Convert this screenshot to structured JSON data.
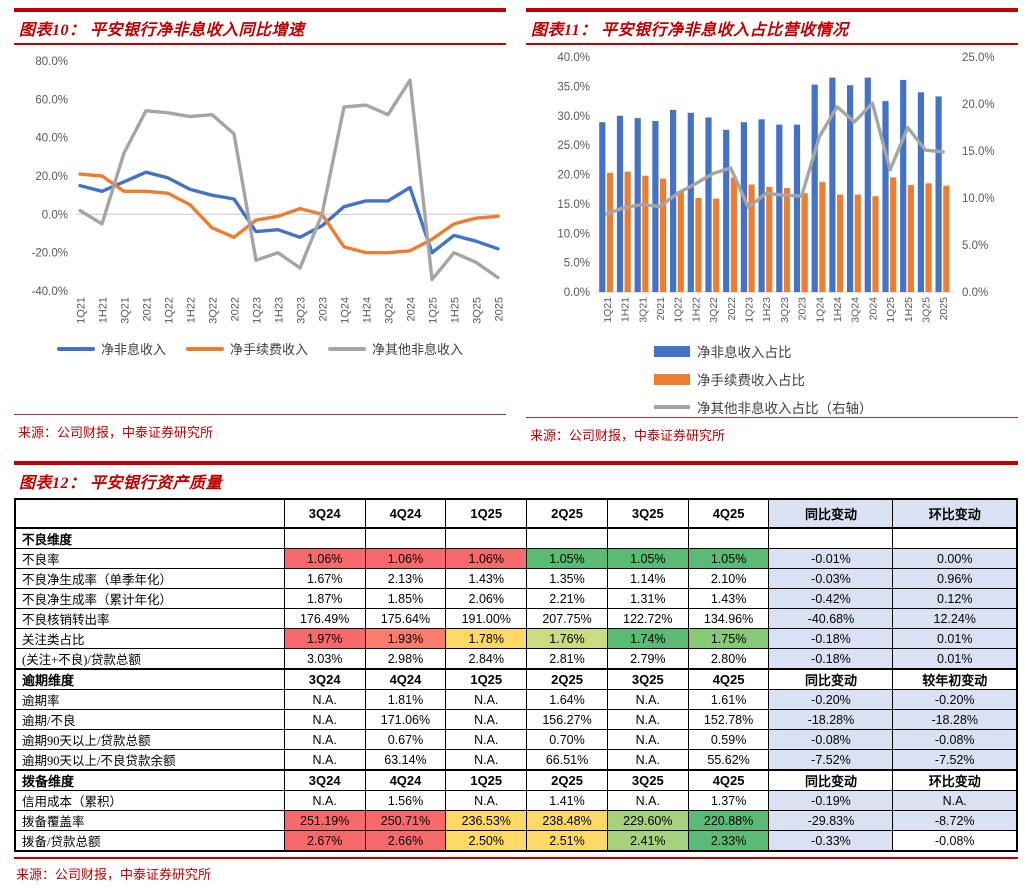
{
  "chart_data": [
    {
      "id": "fig10",
      "type": "line",
      "title": "图表10： 平安银行净非息收入同比增速",
      "source": "来源：公司财报，中泰证券研究所",
      "categories": [
        "1Q21",
        "1H21",
        "3Q21",
        "2021",
        "1Q22",
        "1H22",
        "3Q22",
        "2022",
        "1Q23",
        "1H23",
        "3Q23",
        "2023",
        "1Q24",
        "1H24",
        "3Q24",
        "2024",
        "1Q25",
        "1H25",
        "3Q25",
        "2025"
      ],
      "ylim": [
        -40,
        80
      ],
      "ytick_step": 20,
      "grid": "zero-line-only",
      "legend_position": "bottom",
      "series": [
        {
          "name": "净非息收入",
          "color": "#4472C4",
          "values": [
            15,
            12,
            17,
            22,
            19,
            13,
            10,
            8,
            -9,
            -8,
            -12,
            -6,
            4,
            7,
            7,
            14,
            -20,
            -11,
            -14,
            -18
          ]
        },
        {
          "name": "净手续费收入",
          "color": "#ED7D31",
          "values": [
            21,
            20,
            12,
            12,
            11,
            5,
            -7,
            -12,
            -3,
            -1,
            3,
            0,
            -17,
            -20,
            -20,
            -19,
            -13,
            -5,
            -2,
            -1
          ]
        },
        {
          "name": "净其他非息收入",
          "color": "#A5A5A5",
          "values": [
            2,
            -5,
            32,
            54,
            53,
            51,
            52,
            42,
            -24,
            -20,
            -28,
            0,
            56,
            57,
            52,
            70,
            -34,
            -20,
            -25,
            -33
          ]
        }
      ]
    },
    {
      "id": "fig11",
      "type": "bar+line",
      "title": "图表11： 平安银行净非息收入占比营收情况",
      "source": "来源：公司财报，中泰证券研究所",
      "categories": [
        "1Q21",
        "1H21",
        "3Q21",
        "2021",
        "1Q22",
        "1H22",
        "3Q22",
        "2022",
        "1Q23",
        "1H23",
        "3Q23",
        "2023",
        "1Q24",
        "1H24",
        "3Q24",
        "2024",
        "1Q25",
        "1H25",
        "3Q25",
        "2025"
      ],
      "left_ylim": [
        0,
        40
      ],
      "right_ylim": [
        0,
        25
      ],
      "ytick_step": 5,
      "grid": "baseline-only",
      "legend_position": "bottom-left-vertical",
      "series": [
        {
          "name": "净非息收入占比",
          "kind": "bar",
          "axis": "left",
          "color": "#4472C4",
          "values": [
            28.9,
            30.0,
            29.6,
            29.1,
            31.0,
            30.5,
            29.7,
            27.6,
            28.9,
            29.4,
            28.5,
            28.5,
            35.3,
            36.5,
            35.2,
            36.5,
            32.5,
            36.1,
            34.0,
            33.3
          ]
        },
        {
          "name": "净手续费收入占比",
          "kind": "bar",
          "axis": "left",
          "color": "#ED7D31",
          "values": [
            20.3,
            20.5,
            19.8,
            19.3,
            17.2,
            16.0,
            15.9,
            19.5,
            18.3,
            17.9,
            17.7,
            16.8,
            18.7,
            16.6,
            16.6,
            16.3,
            19.5,
            18.2,
            18.5,
            18.1
          ]
        },
        {
          "name": "净其他非息收入占比（右轴）",
          "kind": "line",
          "axis": "right",
          "color": "#A5A5A5",
          "values": [
            8.3,
            9.0,
            9.3,
            9.1,
            10.5,
            11.5,
            12.6,
            13.2,
            9.0,
            10.5,
            10.3,
            10.2,
            16.5,
            19.7,
            18.1,
            20.1,
            13.0,
            17.5,
            15.1,
            14.9
          ]
        }
      ]
    }
  ],
  "table": {
    "title": "图表12： 平安银行资产质量",
    "source": "来源：公司财报，中泰证券研究所",
    "palette": {
      "red": "#F8696B",
      "red2": "#F87D6C",
      "yellow": "#FFD966",
      "yg": "#C9DC80",
      "lg": "#A6D17E",
      "green": "#5ABB74",
      "green2": "#86C976",
      "blue": "#D9E1F2",
      "white": "#FFFFFF"
    },
    "header": [
      "",
      "3Q24",
      "4Q24",
      "1Q25",
      "2Q25",
      "3Q25",
      "4Q25",
      "同比变动",
      "环比变动"
    ],
    "rows": [
      {
        "type": "section",
        "label": "不良维度",
        "cells": [
          "",
          "",
          "",
          "",
          "",
          "",
          "",
          ""
        ],
        "colors": [
          "white",
          "white",
          "white",
          "white",
          "white",
          "white",
          "white",
          "white"
        ]
      },
      {
        "type": "data",
        "label": "不良率",
        "cells": [
          "1.06%",
          "1.06%",
          "1.06%",
          "1.05%",
          "1.05%",
          "1.05%",
          "-0.01%",
          "0.00%"
        ],
        "colors": [
          "red",
          "red",
          "red",
          "green",
          "green",
          "green",
          "blue",
          "blue"
        ]
      },
      {
        "type": "data",
        "label": "不良净生成率（单季年化）",
        "cells": [
          "1.67%",
          "2.13%",
          "1.43%",
          "1.35%",
          "1.14%",
          "2.10%",
          "-0.03%",
          "0.96%"
        ]
      },
      {
        "type": "data",
        "label": "不良净生成率（累计年化）",
        "cells": [
          "1.87%",
          "1.85%",
          "2.06%",
          "2.21%",
          "1.31%",
          "1.43%",
          "-0.42%",
          "0.12%"
        ]
      },
      {
        "type": "data",
        "label": "不良核销转出率",
        "cells": [
          "176.49%",
          "175.64%",
          "191.00%",
          "207.75%",
          "122.72%",
          "134.96%",
          "-40.68%",
          "12.24%"
        ]
      },
      {
        "type": "data",
        "label": "关注类占比",
        "cells": [
          "1.97%",
          "1.93%",
          "1.78%",
          "1.76%",
          "1.74%",
          "1.75%",
          "-0.18%",
          "0.01%"
        ],
        "colors": [
          "red",
          "red2",
          "yellow",
          "yg",
          "green",
          "green2",
          "blue",
          "blue"
        ]
      },
      {
        "type": "data",
        "label": "(关注+不良)/贷款总额",
        "cells": [
          "3.03%",
          "2.98%",
          "2.84%",
          "2.81%",
          "2.79%",
          "2.80%",
          "-0.18%",
          "0.01%"
        ]
      },
      {
        "type": "subhdr",
        "label": "逾期维度",
        "cells": [
          "3Q24",
          "4Q24",
          "1Q25",
          "2Q25",
          "3Q25",
          "4Q25",
          "同比变动",
          "较年初变动"
        ]
      },
      {
        "type": "data",
        "label": "逾期率",
        "cells": [
          "N.A.",
          "1.81%",
          "N.A.",
          "1.64%",
          "N.A.",
          "1.61%",
          "-0.20%",
          "-0.20%"
        ]
      },
      {
        "type": "data",
        "label": "逾期/不良",
        "cells": [
          "N.A.",
          "171.06%",
          "N.A.",
          "156.27%",
          "N.A.",
          "152.78%",
          "-18.28%",
          "-18.28%"
        ]
      },
      {
        "type": "data",
        "label": "逾期90天以上/贷款总额",
        "cells": [
          "N.A.",
          "0.67%",
          "N.A.",
          "0.70%",
          "N.A.",
          "0.59%",
          "-0.08%",
          "-0.08%"
        ]
      },
      {
        "type": "data",
        "label": "逾期90天以上/不良贷款余额",
        "cells": [
          "N.A.",
          "63.14%",
          "N.A.",
          "66.51%",
          "N.A.",
          "55.62%",
          "-7.52%",
          "-7.52%"
        ]
      },
      {
        "type": "subhdr",
        "label": "拨备维度",
        "cells": [
          "3Q24",
          "4Q24",
          "1Q25",
          "2Q25",
          "3Q25",
          "4Q25",
          "同比变动",
          "环比变动"
        ]
      },
      {
        "type": "data",
        "label": "信用成本（累积）",
        "cells": [
          "N.A.",
          "1.56%",
          "N.A.",
          "1.41%",
          "N.A.",
          "1.37%",
          "-0.19%",
          "N.A."
        ]
      },
      {
        "type": "data",
        "label": "拨备覆盖率",
        "cells": [
          "251.19%",
          "250.71%",
          "236.53%",
          "238.48%",
          "229.60%",
          "220.88%",
          "-29.83%",
          "-8.72%"
        ],
        "colors": [
          "red",
          "red",
          "yellow",
          "yellow",
          "lg",
          "green",
          "blue",
          "blue"
        ]
      },
      {
        "type": "data",
        "label": "拨备/贷款总额",
        "cells": [
          "2.67%",
          "2.66%",
          "2.50%",
          "2.51%",
          "2.41%",
          "2.33%",
          "-0.33%",
          "-0.08%"
        ],
        "colors": [
          "red",
          "red",
          "yellow",
          "yellow",
          "lg",
          "green",
          "blue",
          "white"
        ]
      }
    ]
  }
}
